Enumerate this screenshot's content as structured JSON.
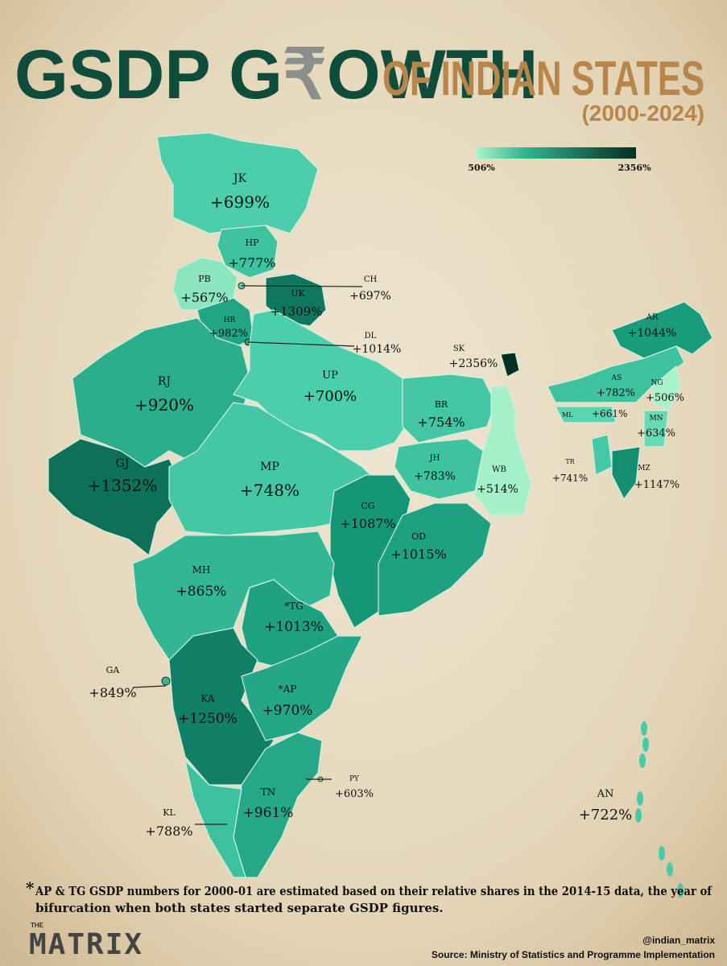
{
  "header": {
    "title_left": "GSDP G",
    "title_symbol": "₹",
    "title_right": "OWTH",
    "title_suffix": "OF INDIAN STATES",
    "period": "(2000-2024)"
  },
  "legend": {
    "min": 506,
    "min_label": "506%",
    "max": 2356,
    "max_label": "2356%"
  },
  "states": [
    {
      "code": "JK",
      "value": 699,
      "label": "+699%"
    },
    {
      "code": "HP",
      "value": 777,
      "label": "+777%"
    },
    {
      "code": "PB",
      "value": 567,
      "label": "+567%"
    },
    {
      "code": "UK",
      "value": 1309,
      "label": "+1309%"
    },
    {
      "code": "CH",
      "value": 697,
      "label": "+697%"
    },
    {
      "code": "HR",
      "value": 982,
      "label": "+982%"
    },
    {
      "code": "DL",
      "value": 1014,
      "label": "+1014%"
    },
    {
      "code": "RJ",
      "value": 920,
      "label": "+920%"
    },
    {
      "code": "UP",
      "value": 700,
      "label": "+700%"
    },
    {
      "code": "SK",
      "value": 2356,
      "label": "+2356%"
    },
    {
      "code": "AR",
      "value": 1044,
      "label": "+1044%"
    },
    {
      "code": "AS",
      "value": 782,
      "label": "+782%"
    },
    {
      "code": "NG",
      "value": 506,
      "label": "+506%"
    },
    {
      "code": "ML",
      "value": 661,
      "label": "+661%"
    },
    {
      "code": "MN",
      "value": 634,
      "label": "+634%"
    },
    {
      "code": "BR",
      "value": 754,
      "label": "+754%"
    },
    {
      "code": "GJ",
      "value": 1352,
      "label": "+1352%"
    },
    {
      "code": "MP",
      "value": 748,
      "label": "+748%"
    },
    {
      "code": "JH",
      "value": 783,
      "label": "+783%"
    },
    {
      "code": "WB",
      "value": 514,
      "label": "+514%"
    },
    {
      "code": "TR",
      "value": 741,
      "label": "+741%"
    },
    {
      "code": "MZ",
      "value": 1147,
      "label": "+1147%"
    },
    {
      "code": "CG",
      "value": 1087,
      "label": "+1087%"
    },
    {
      "code": "OD",
      "value": 1015,
      "label": "+1015%"
    },
    {
      "code": "MH",
      "value": 865,
      "label": "+865%"
    },
    {
      "code": "*TG",
      "value": 1013,
      "label": "+1013%"
    },
    {
      "code": "GA",
      "value": 849,
      "label": "+849%"
    },
    {
      "code": "KA",
      "value": 1250,
      "label": "+1250%"
    },
    {
      "code": "*AP",
      "value": 970,
      "label": "+970%"
    },
    {
      "code": "PY",
      "value": 603,
      "label": "+603%"
    },
    {
      "code": "TN",
      "value": 961,
      "label": "+961%"
    },
    {
      "code": "KL",
      "value": 788,
      "label": "+788%"
    },
    {
      "code": "AN",
      "value": 722,
      "label": "+722%"
    }
  ],
  "footnote": {
    "marker": "*",
    "text": "AP & TG GSDP numbers for 2000-01 are estimated based on their relative shares in the 2014-15 data, the year of",
    "text2": "bifurcation when both states started separate GSDP figures."
  },
  "brand": {
    "small": "THE",
    "name": "MATRIX",
    "handle": "@indian_matrix",
    "source": "Source: Ministry of Statistics and Programme Implementation"
  }
}
